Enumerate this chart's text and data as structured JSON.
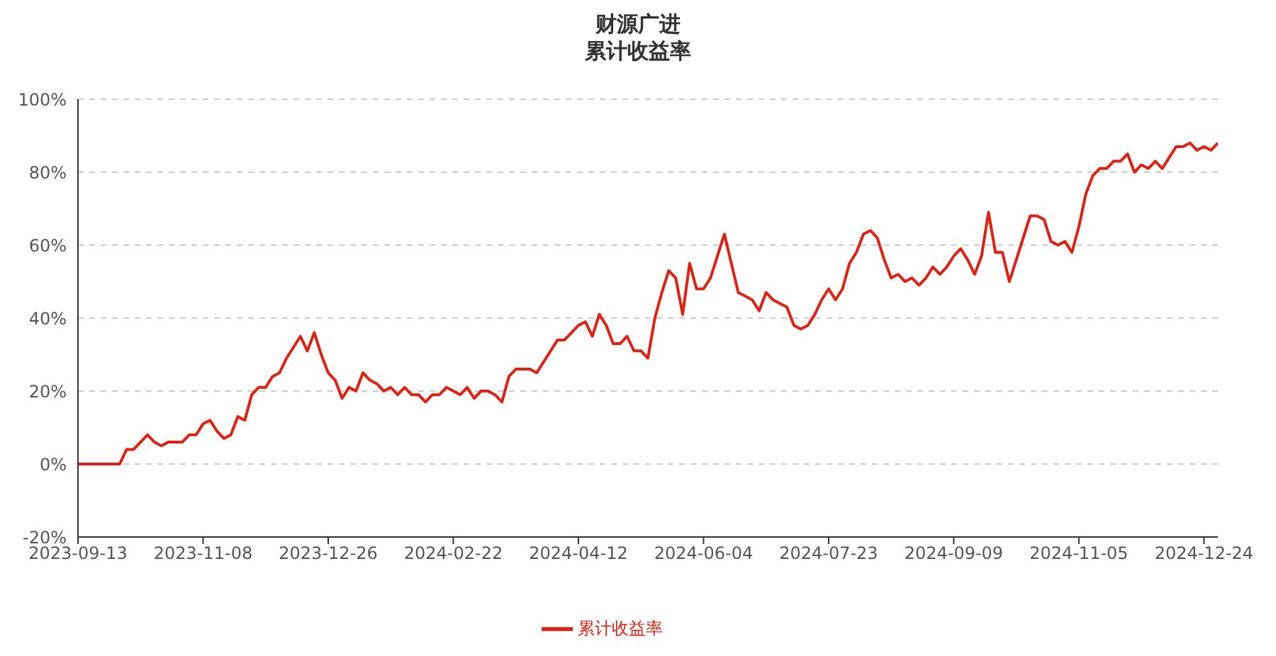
{
  "chart_data": {
    "type": "line",
    "title": "财源广进",
    "subtitle": "累计收益率",
    "categories": [
      "2023-09-13",
      null,
      null,
      null,
      null,
      null,
      null,
      null,
      null,
      null,
      null,
      null,
      null,
      null,
      null,
      null,
      null,
      null,
      "2023-11-08",
      null,
      null,
      null,
      null,
      null,
      null,
      null,
      null,
      null,
      null,
      null,
      null,
      null,
      null,
      null,
      null,
      null,
      "2023-12-26",
      null,
      null,
      null,
      null,
      null,
      null,
      null,
      null,
      null,
      null,
      null,
      null,
      null,
      null,
      null,
      null,
      null,
      "2024-02-22",
      null,
      null,
      null,
      null,
      null,
      null,
      null,
      null,
      null,
      null,
      null,
      null,
      null,
      null,
      null,
      null,
      null,
      "2024-04-12",
      null,
      null,
      null,
      null,
      null,
      null,
      null,
      null,
      null,
      null,
      null,
      null,
      null,
      null,
      null,
      null,
      null,
      "2024-06-04",
      null,
      null,
      null,
      null,
      null,
      null,
      null,
      null,
      null,
      null,
      null,
      null,
      null,
      null,
      null,
      null,
      null,
      "2024-07-23",
      null,
      null,
      null,
      null,
      null,
      null,
      null,
      null,
      null,
      null,
      null,
      null,
      null,
      null,
      null,
      null,
      null,
      "2024-09-09",
      null,
      null,
      null,
      null,
      null,
      null,
      null,
      null,
      null,
      null,
      null,
      null,
      null,
      null,
      null,
      null,
      null,
      "2024-11-05",
      null,
      null,
      null,
      null,
      null,
      null,
      null,
      null,
      null,
      null,
      null,
      null,
      null,
      null,
      null,
      null,
      null,
      "2024-12-24",
      null,
      null
    ],
    "series": [
      {
        "name": "累计收益率",
        "color": "#e02010",
        "values": [
          0,
          0,
          0,
          0,
          0,
          0,
          0,
          4,
          4,
          6,
          8,
          6,
          5,
          6,
          6,
          6,
          8,
          8,
          11,
          12,
          9,
          7,
          8,
          13,
          12,
          19,
          21,
          21,
          24,
          25,
          29,
          32,
          35,
          31,
          36,
          30,
          25,
          23,
          18,
          21,
          20,
          25,
          23,
          22,
          20,
          21,
          19,
          21,
          19,
          19,
          17,
          19,
          19,
          21,
          20,
          19,
          21,
          18,
          20,
          20,
          19,
          17,
          24,
          26,
          26,
          26,
          25,
          28,
          31,
          34,
          34,
          36,
          38,
          39,
          35,
          41,
          38,
          33,
          33,
          35,
          31,
          31,
          29,
          40,
          47,
          53,
          51,
          41,
          55,
          48,
          48,
          51,
          57,
          63,
          55,
          47,
          46,
          45,
          42,
          47,
          45,
          44,
          43,
          38,
          37,
          38,
          41,
          45,
          48,
          45,
          48,
          55,
          58,
          63,
          64,
          62,
          56,
          51,
          52,
          50,
          51,
          49,
          51,
          54,
          52,
          54,
          57,
          59,
          56,
          52,
          57,
          69,
          58,
          58,
          50,
          56,
          62,
          68,
          68,
          67,
          61,
          60,
          61,
          58,
          65,
          74,
          79,
          81,
          81,
          83,
          83,
          85,
          80,
          82,
          81,
          83,
          81,
          84,
          87,
          87,
          88,
          86,
          87,
          86,
          88
        ]
      }
    ],
    "ylim": [
      -20,
      100
    ],
    "yticks": [
      {
        "value": -20,
        "label": "-20%"
      },
      {
        "value": 0,
        "label": "0%"
      },
      {
        "value": 20,
        "label": "20%"
      },
      {
        "value": 40,
        "label": "40%"
      },
      {
        "value": 60,
        "label": "60%"
      },
      {
        "value": 80,
        "label": "80%"
      },
      {
        "value": 100,
        "label": "100%"
      }
    ],
    "grid": "y",
    "legend": "bottom",
    "marker": "none",
    "line_style": "solid"
  }
}
